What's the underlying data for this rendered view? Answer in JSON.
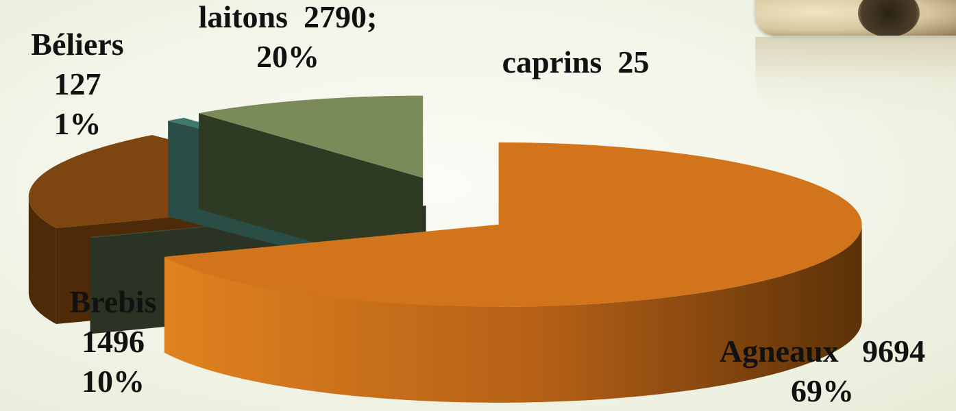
{
  "chart_data": {
    "type": "pie",
    "title": "",
    "slices": [
      {
        "name": "Agneaux",
        "value": 9694,
        "percent": "69%",
        "color": "#d1741c",
        "side": "#a55814"
      },
      {
        "name": "caprins",
        "value": 25,
        "percent": "",
        "color": "#44503a",
        "side": "#2b3424"
      },
      {
        "name": "laitons",
        "value": 2790,
        "percent": "20%",
        "color": "#7d4510",
        "side": "#4e2a08"
      },
      {
        "name": "Béliers",
        "value": 127,
        "percent": "1%",
        "color": "#3e7a6f",
        "side": "#2a4e45"
      },
      {
        "name": "Brebis",
        "value": 1496,
        "percent": "10%",
        "color": "#7b8a59",
        "side": "#2e3a24"
      }
    ],
    "labels": {
      "agneaux": {
        "name": "Agneaux",
        "value": "9694",
        "percent": "69%"
      },
      "caprins": {
        "name": "caprins",
        "value": "25"
      },
      "laitons": {
        "name": "laitons",
        "value": "2790;",
        "percent": "20%"
      },
      "beliers": {
        "name": "Béliers",
        "value": "127",
        "percent": "1%"
      },
      "brebis": {
        "name": "Brebis",
        "value": "1496",
        "percent": "10%"
      }
    }
  }
}
